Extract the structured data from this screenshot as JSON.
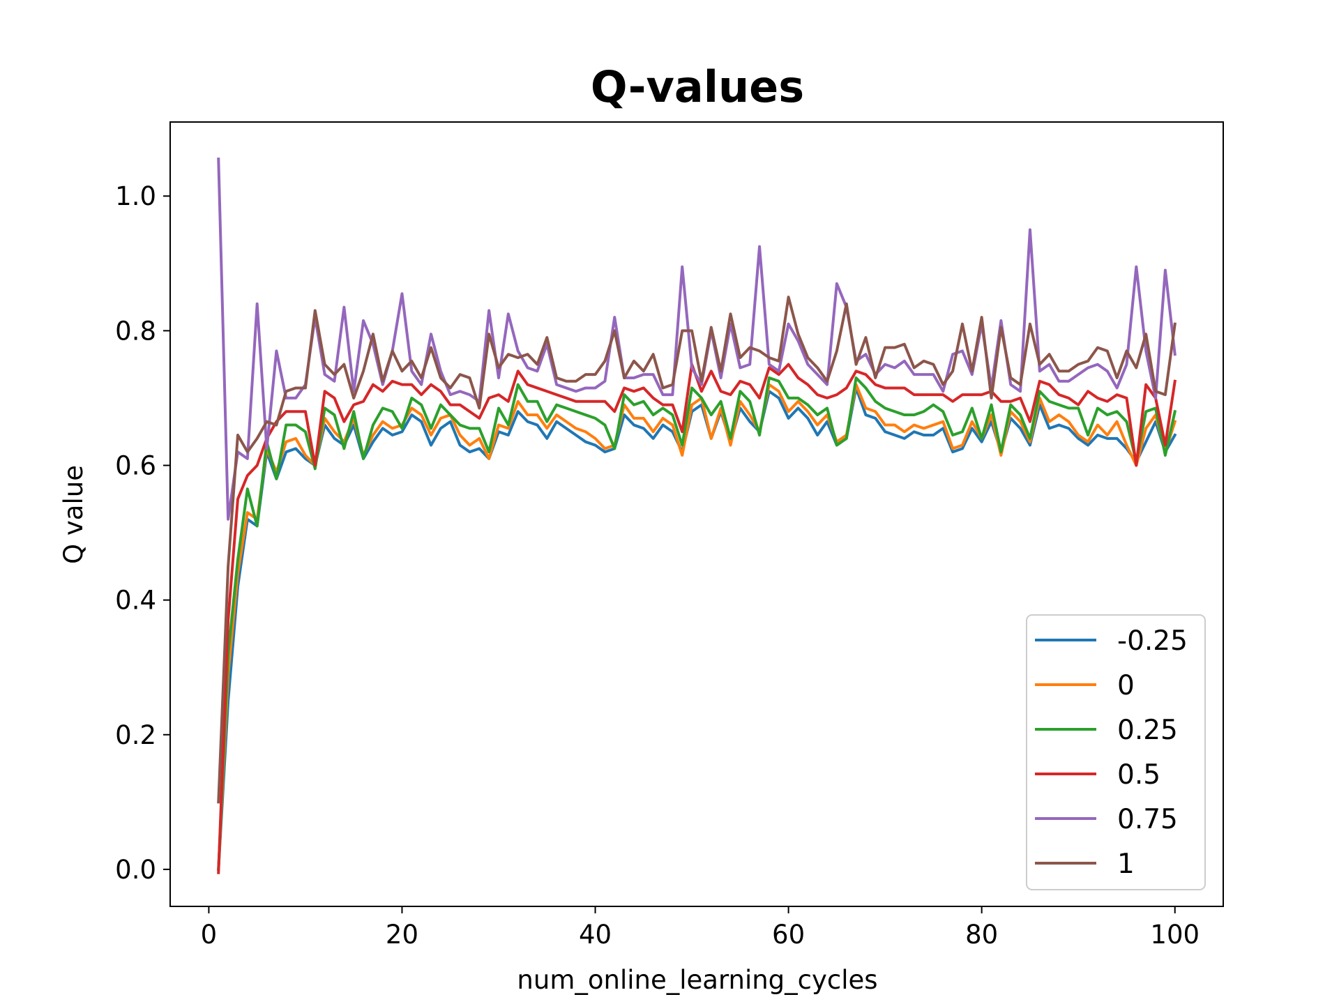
{
  "chart_data": {
    "type": "line",
    "title": "Q-values",
    "xlabel": "num_online_learning_cycles",
    "ylabel": "Q value",
    "xlim": [
      -4,
      105
    ],
    "ylim": [
      -0.055,
      1.11
    ],
    "xticks": [
      0,
      20,
      40,
      60,
      80,
      100
    ],
    "xtick_labels": [
      "0",
      "20",
      "40",
      "60",
      "80",
      "100"
    ],
    "yticks": [
      0.0,
      0.2,
      0.4,
      0.6,
      0.8,
      1.0
    ],
    "ytick_labels": [
      "0.0",
      "0.2",
      "0.4",
      "0.6",
      "0.8",
      "1.0"
    ],
    "grid": false,
    "legend": "lower-right",
    "x": [
      1,
      2,
      3,
      4,
      5,
      6,
      7,
      8,
      9,
      10,
      11,
      12,
      13,
      14,
      15,
      16,
      17,
      18,
      19,
      20,
      21,
      22,
      23,
      24,
      25,
      26,
      27,
      28,
      29,
      30,
      31,
      32,
      33,
      34,
      35,
      36,
      37,
      38,
      39,
      40,
      41,
      42,
      43,
      44,
      45,
      46,
      47,
      48,
      49,
      50,
      51,
      52,
      53,
      54,
      55,
      56,
      57,
      58,
      59,
      60,
      61,
      62,
      63,
      64,
      65,
      66,
      67,
      68,
      69,
      70,
      71,
      72,
      73,
      74,
      75,
      76,
      77,
      78,
      79,
      80,
      81,
      82,
      83,
      84,
      85,
      86,
      87,
      88,
      89,
      90,
      91,
      92,
      93,
      94,
      95,
      96,
      97,
      98,
      99,
      100
    ],
    "series": [
      {
        "name": "-0.25",
        "color": "#1f77b4",
        "values": [
          0.0,
          0.25,
          0.42,
          0.52,
          0.51,
          0.62,
          0.58,
          0.62,
          0.625,
          0.61,
          0.6,
          0.66,
          0.64,
          0.63,
          0.66,
          0.61,
          0.635,
          0.655,
          0.645,
          0.65,
          0.675,
          0.665,
          0.63,
          0.655,
          0.665,
          0.63,
          0.62,
          0.625,
          0.61,
          0.65,
          0.645,
          0.68,
          0.665,
          0.66,
          0.64,
          0.665,
          0.655,
          0.645,
          0.635,
          0.63,
          0.62,
          0.625,
          0.675,
          0.66,
          0.655,
          0.64,
          0.66,
          0.65,
          0.62,
          0.68,
          0.69,
          0.64,
          0.68,
          0.635,
          0.685,
          0.665,
          0.65,
          0.71,
          0.7,
          0.67,
          0.685,
          0.67,
          0.645,
          0.665,
          0.63,
          0.64,
          0.715,
          0.675,
          0.67,
          0.65,
          0.645,
          0.64,
          0.65,
          0.645,
          0.645,
          0.655,
          0.62,
          0.625,
          0.655,
          0.635,
          0.665,
          0.62,
          0.67,
          0.655,
          0.63,
          0.69,
          0.655,
          0.66,
          0.655,
          0.64,
          0.63,
          0.645,
          0.64,
          0.64,
          0.625,
          0.605,
          0.635,
          0.665,
          0.62,
          0.645
        ]
      },
      {
        "name": "0",
        "color": "#ff7f0e",
        "values": [
          0.0,
          0.29,
          0.44,
          0.53,
          0.52,
          0.625,
          0.59,
          0.635,
          0.64,
          0.615,
          0.6,
          0.67,
          0.65,
          0.635,
          0.67,
          0.615,
          0.645,
          0.665,
          0.655,
          0.66,
          0.685,
          0.675,
          0.645,
          0.67,
          0.675,
          0.645,
          0.63,
          0.64,
          0.61,
          0.66,
          0.655,
          0.695,
          0.675,
          0.675,
          0.655,
          0.675,
          0.665,
          0.655,
          0.65,
          0.64,
          0.625,
          0.63,
          0.69,
          0.67,
          0.67,
          0.65,
          0.67,
          0.66,
          0.615,
          0.69,
          0.7,
          0.64,
          0.685,
          0.63,
          0.695,
          0.675,
          0.65,
          0.72,
          0.71,
          0.68,
          0.695,
          0.68,
          0.66,
          0.675,
          0.635,
          0.645,
          0.72,
          0.685,
          0.68,
          0.66,
          0.66,
          0.65,
          0.66,
          0.655,
          0.66,
          0.665,
          0.625,
          0.63,
          0.665,
          0.64,
          0.675,
          0.615,
          0.68,
          0.665,
          0.635,
          0.7,
          0.665,
          0.675,
          0.665,
          0.645,
          0.635,
          0.66,
          0.645,
          0.665,
          0.63,
          0.6,
          0.655,
          0.675,
          0.62,
          0.665
        ]
      },
      {
        "name": "0.25",
        "color": "#2ca02c",
        "values": [
          0.0,
          0.32,
          0.46,
          0.565,
          0.51,
          0.635,
          0.58,
          0.66,
          0.66,
          0.65,
          0.595,
          0.685,
          0.675,
          0.625,
          0.68,
          0.61,
          0.66,
          0.685,
          0.68,
          0.655,
          0.7,
          0.69,
          0.655,
          0.69,
          0.675,
          0.66,
          0.655,
          0.655,
          0.62,
          0.685,
          0.66,
          0.72,
          0.695,
          0.695,
          0.665,
          0.69,
          0.685,
          0.68,
          0.675,
          0.67,
          0.66,
          0.625,
          0.705,
          0.69,
          0.695,
          0.675,
          0.685,
          0.675,
          0.63,
          0.715,
          0.7,
          0.675,
          0.695,
          0.64,
          0.71,
          0.695,
          0.645,
          0.73,
          0.725,
          0.7,
          0.7,
          0.69,
          0.675,
          0.685,
          0.63,
          0.64,
          0.73,
          0.715,
          0.695,
          0.685,
          0.68,
          0.675,
          0.675,
          0.68,
          0.69,
          0.68,
          0.645,
          0.65,
          0.685,
          0.64,
          0.69,
          0.62,
          0.69,
          0.675,
          0.64,
          0.71,
          0.695,
          0.69,
          0.685,
          0.685,
          0.645,
          0.685,
          0.675,
          0.68,
          0.665,
          0.605,
          0.68,
          0.685,
          0.615,
          0.68
        ]
      },
      {
        "name": "0.5",
        "color": "#d62728",
        "values": [
          -0.005,
          0.37,
          0.55,
          0.585,
          0.6,
          0.64,
          0.665,
          0.68,
          0.68,
          0.68,
          0.6,
          0.71,
          0.7,
          0.665,
          0.69,
          0.695,
          0.72,
          0.71,
          0.725,
          0.72,
          0.72,
          0.705,
          0.72,
          0.71,
          0.69,
          0.69,
          0.68,
          0.67,
          0.7,
          0.705,
          0.695,
          0.74,
          0.72,
          0.715,
          0.71,
          0.705,
          0.7,
          0.695,
          0.695,
          0.695,
          0.695,
          0.68,
          0.715,
          0.71,
          0.715,
          0.7,
          0.69,
          0.69,
          0.65,
          0.75,
          0.71,
          0.74,
          0.71,
          0.705,
          0.725,
          0.72,
          0.7,
          0.745,
          0.735,
          0.75,
          0.73,
          0.72,
          0.705,
          0.7,
          0.705,
          0.715,
          0.74,
          0.735,
          0.72,
          0.715,
          0.715,
          0.715,
          0.705,
          0.705,
          0.705,
          0.705,
          0.695,
          0.705,
          0.705,
          0.705,
          0.71,
          0.695,
          0.695,
          0.7,
          0.665,
          0.725,
          0.72,
          0.705,
          0.7,
          0.69,
          0.71,
          0.7,
          0.695,
          0.705,
          0.7,
          0.6,
          0.72,
          0.7,
          0.63,
          0.725
        ]
      },
      {
        "name": "0.75",
        "color": "#9467bd",
        "values": [
          1.055,
          0.52,
          0.62,
          0.61,
          0.84,
          0.625,
          0.77,
          0.7,
          0.7,
          0.72,
          0.82,
          0.735,
          0.725,
          0.835,
          0.71,
          0.815,
          0.78,
          0.72,
          0.77,
          0.855,
          0.74,
          0.72,
          0.795,
          0.74,
          0.705,
          0.71,
          0.705,
          0.695,
          0.83,
          0.73,
          0.825,
          0.77,
          0.745,
          0.74,
          0.78,
          0.72,
          0.715,
          0.71,
          0.715,
          0.715,
          0.725,
          0.82,
          0.73,
          0.73,
          0.735,
          0.735,
          0.705,
          0.705,
          0.895,
          0.745,
          0.72,
          0.8,
          0.73,
          0.81,
          0.745,
          0.75,
          0.925,
          0.75,
          0.74,
          0.81,
          0.785,
          0.75,
          0.735,
          0.72,
          0.87,
          0.835,
          0.755,
          0.765,
          0.735,
          0.75,
          0.745,
          0.755,
          0.735,
          0.735,
          0.735,
          0.71,
          0.765,
          0.77,
          0.735,
          0.81,
          0.715,
          0.815,
          0.72,
          0.71,
          0.95,
          0.74,
          0.75,
          0.725,
          0.725,
          0.735,
          0.745,
          0.75,
          0.74,
          0.715,
          0.75,
          0.895,
          0.77,
          0.7,
          0.89,
          0.765
        ]
      },
      {
        "name": "1",
        "color": "#8c564b",
        "values": [
          0.1,
          0.45,
          0.645,
          0.62,
          0.64,
          0.665,
          0.66,
          0.71,
          0.715,
          0.715,
          0.83,
          0.75,
          0.735,
          0.75,
          0.7,
          0.74,
          0.795,
          0.725,
          0.77,
          0.74,
          0.755,
          0.73,
          0.775,
          0.73,
          0.715,
          0.735,
          0.73,
          0.685,
          0.795,
          0.745,
          0.765,
          0.76,
          0.765,
          0.75,
          0.79,
          0.73,
          0.725,
          0.725,
          0.735,
          0.735,
          0.755,
          0.8,
          0.73,
          0.755,
          0.74,
          0.765,
          0.715,
          0.72,
          0.8,
          0.8,
          0.725,
          0.805,
          0.74,
          0.825,
          0.76,
          0.775,
          0.77,
          0.76,
          0.755,
          0.85,
          0.795,
          0.76,
          0.745,
          0.725,
          0.77,
          0.84,
          0.75,
          0.79,
          0.73,
          0.775,
          0.775,
          0.78,
          0.745,
          0.755,
          0.75,
          0.72,
          0.74,
          0.81,
          0.74,
          0.82,
          0.7,
          0.805,
          0.73,
          0.72,
          0.81,
          0.75,
          0.765,
          0.74,
          0.74,
          0.75,
          0.755,
          0.775,
          0.77,
          0.73,
          0.77,
          0.745,
          0.795,
          0.71,
          0.705,
          0.81
        ]
      }
    ]
  }
}
